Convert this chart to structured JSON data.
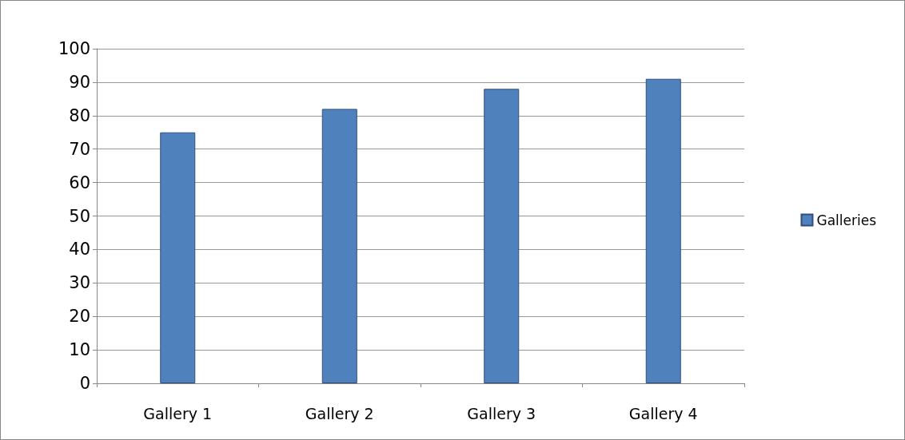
{
  "chart_data": {
    "type": "bar",
    "categories": [
      "Gallery 1",
      "Gallery 2",
      "Gallery 3",
      "Gallery 4"
    ],
    "series": [
      {
        "name": "Galleries",
        "color": "#4f81bd",
        "values": [
          75,
          82,
          88,
          91
        ]
      }
    ],
    "ylim": [
      0,
      100
    ],
    "yticks": [
      0,
      10,
      20,
      30,
      40,
      50,
      60,
      70,
      80,
      90,
      100
    ],
    "grid": "y",
    "legend": "right"
  }
}
